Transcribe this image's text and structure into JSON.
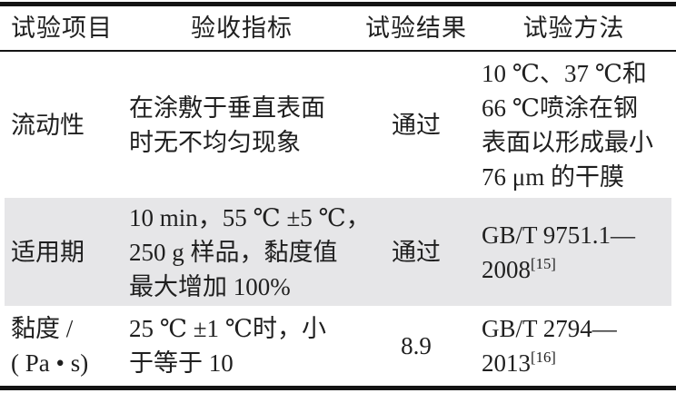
{
  "table": {
    "headers": [
      "试验项目",
      "验收指标",
      "试验结果",
      "试验方法"
    ],
    "rows": [
      {
        "item_lines": [
          "流动性"
        ],
        "criteria_lines": [
          "在涂敷于垂直表面",
          "时无不均匀现象"
        ],
        "result": "通过",
        "method_lines": [
          "10 ℃、37 ℃和",
          "66 ℃喷涂在钢",
          "表面以形成最小",
          "76 μm 的干膜"
        ]
      },
      {
        "item_lines": [
          "适用期"
        ],
        "criteria_lines": [
          "10 min，55 ℃ ±5 ℃，",
          "250 g 样品，黏度值",
          "最大增加 100%"
        ],
        "result": "通过",
        "method_line1": "GB/T 9751.1—",
        "method_ref_base": "2008",
        "method_ref_sup": "[15]"
      },
      {
        "item_lines": [
          "黏度 /",
          "( Pa • s)"
        ],
        "criteria_lines": [
          "25 ℃ ±1 ℃时，小",
          "于等于 10"
        ],
        "result": "8.9",
        "method_line1": "GB/T 2794—",
        "method_ref_base": "2013",
        "method_ref_sup": "[16]"
      }
    ]
  },
  "colors": {
    "background": "#ffffff",
    "text": "#1f1f1f",
    "rule": "#141414",
    "highlight_row_bg": "#e6e6e8"
  }
}
